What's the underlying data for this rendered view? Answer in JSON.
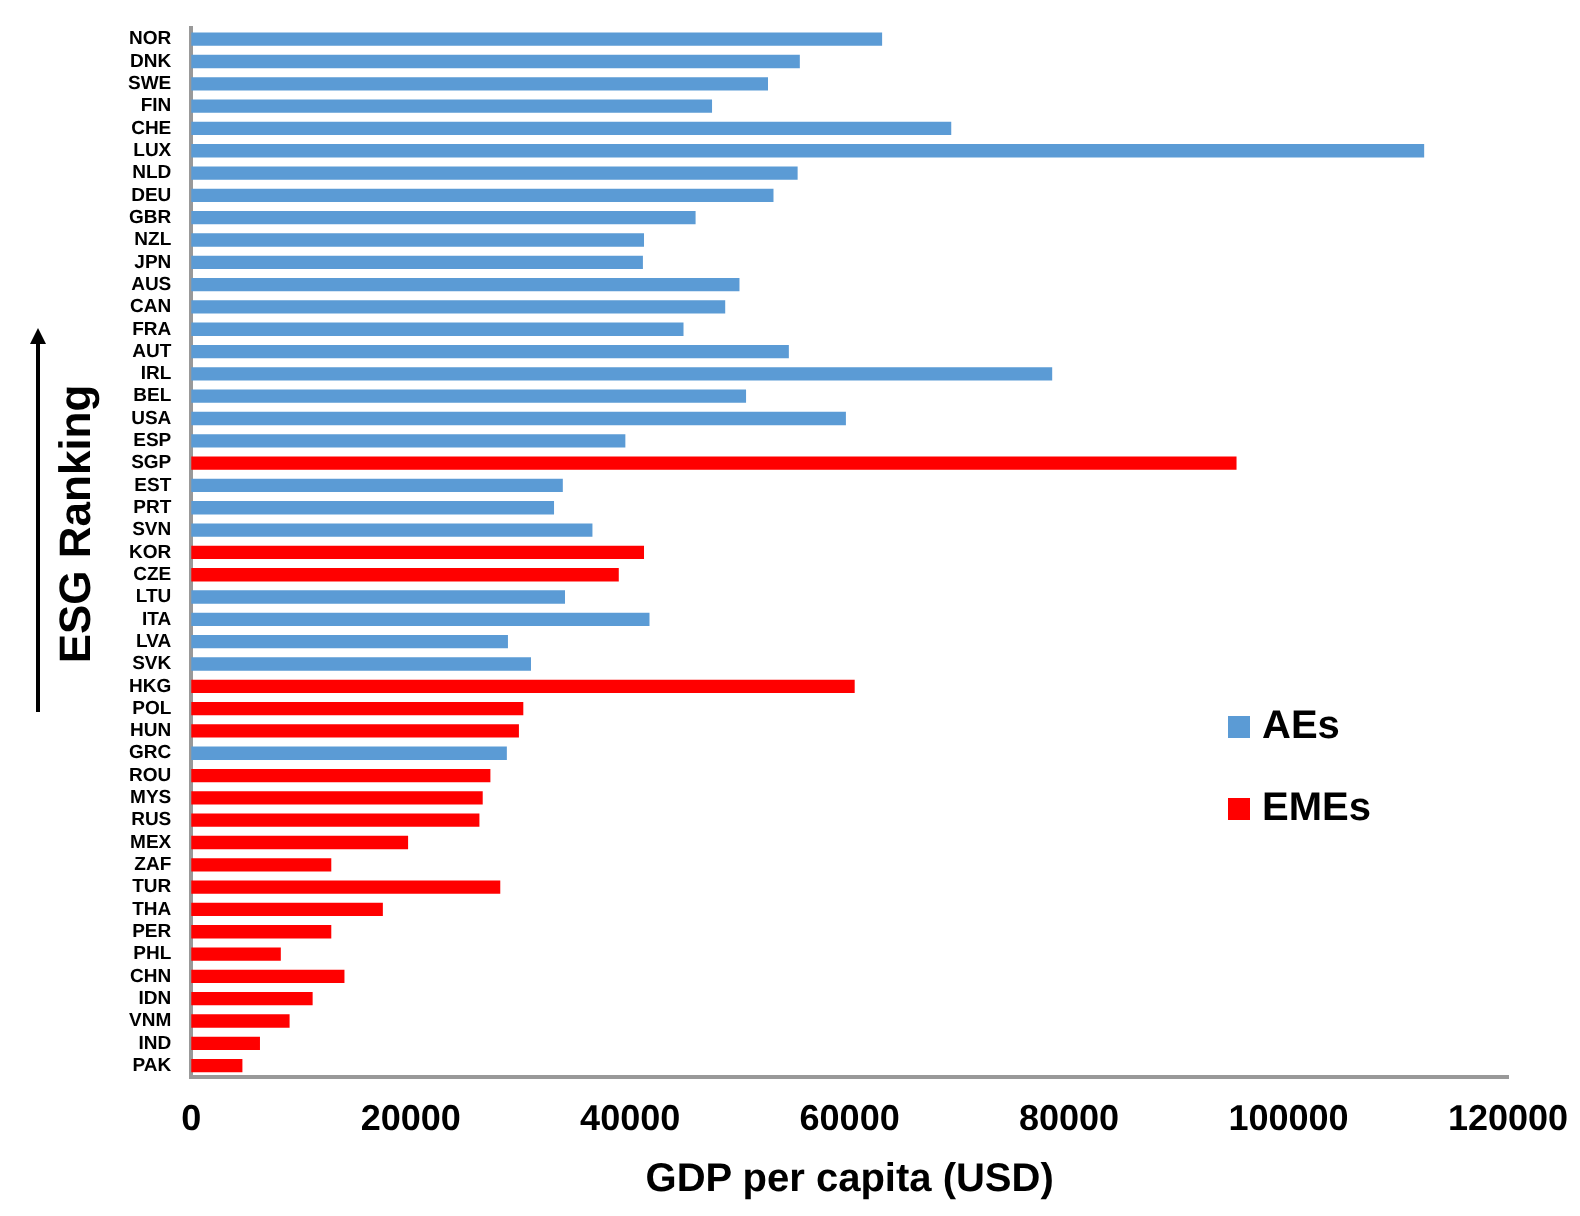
{
  "chart_data": {
    "type": "bar",
    "orientation": "horizontal",
    "xlabel": "GDP per capita (USD)",
    "ylabel": "ESG Ranking",
    "categories": [
      "NOR",
      "DNK",
      "SWE",
      "FIN",
      "CHE",
      "LUX",
      "NLD",
      "DEU",
      "GBR",
      "NZL",
      "JPN",
      "AUS",
      "CAN",
      "FRA",
      "AUT",
      "IRL",
      "BEL",
      "USA",
      "ESP",
      "SGP",
      "EST",
      "PRT",
      "SVN",
      "KOR",
      "CZE",
      "LTU",
      "ITA",
      "LVA",
      "SVK",
      "HKG",
      "POL",
      "HUN",
      "GRC",
      "ROU",
      "MYS",
      "RUS",
      "MEX",
      "ZAF",
      "TUR",
      "THA",
      "PER",
      "PHL",
      "CHN",
      "IDN",
      "VNM",
      "IND",
      "PAK"
    ],
    "series": [
      {
        "name": "AEs",
        "color": "#5b9bd5",
        "values": [
          62900,
          55400,
          52500,
          47400,
          69200,
          112300,
          55200,
          53000,
          45900,
          41200,
          41100,
          49900,
          48600,
          44800,
          54400,
          78400,
          50500,
          59600,
          39500,
          null,
          33800,
          33000,
          36500,
          null,
          null,
          34000,
          41700,
          28800,
          30900,
          null,
          null,
          null,
          28700,
          null,
          null,
          null,
          null,
          null,
          null,
          null,
          null,
          null,
          null,
          null,
          null,
          null,
          null
        ]
      },
      {
        "name": "EMEs",
        "color": "#ff0000",
        "values": [
          null,
          null,
          null,
          null,
          null,
          null,
          null,
          null,
          null,
          null,
          null,
          null,
          null,
          null,
          null,
          null,
          null,
          null,
          null,
          95200,
          null,
          null,
          null,
          41200,
          38900,
          null,
          null,
          null,
          null,
          60400,
          30200,
          29800,
          null,
          27200,
          26500,
          26200,
          19700,
          12700,
          28100,
          17400,
          12700,
          8100,
          13900,
          11000,
          8900,
          6200,
          4600
        ]
      }
    ],
    "xlim": [
      0,
      120000
    ],
    "xticks": [
      0,
      20000,
      40000,
      60000,
      80000,
      100000,
      120000
    ],
    "grid": false,
    "legend": "right"
  }
}
